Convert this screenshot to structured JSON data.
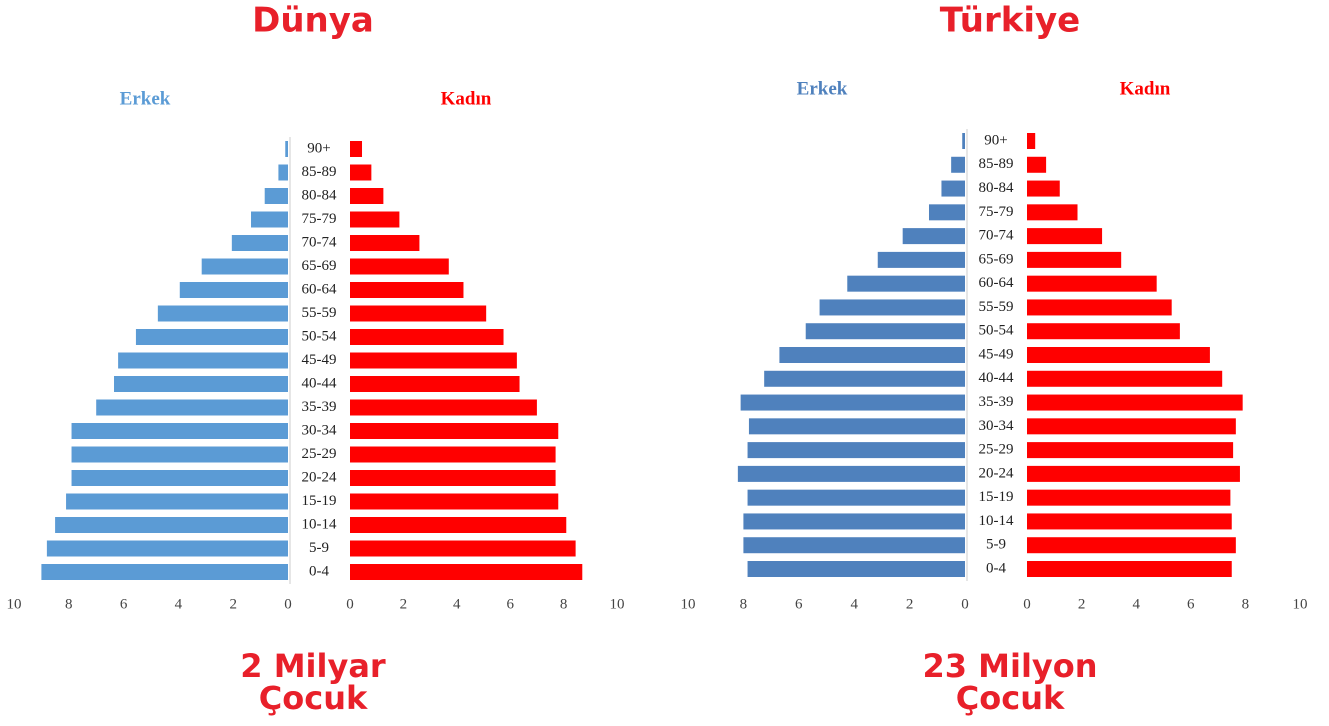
{
  "chart_data": [
    {
      "type": "bar",
      "title": "Dünya",
      "categories": [
        "0-4",
        "5-9",
        "10-14",
        "15-19",
        "20-24",
        "25-29",
        "30-34",
        "35-39",
        "40-44",
        "45-49",
        "50-54",
        "55-59",
        "60-64",
        "65-69",
        "70-74",
        "75-79",
        "80-84",
        "85-89",
        "90+"
      ],
      "series": [
        {
          "name": "Erkek",
          "color": "#5b9bd5",
          "values": [
            9.0,
            8.8,
            8.5,
            8.1,
            7.9,
            7.9,
            7.9,
            7.0,
            6.35,
            6.2,
            5.55,
            4.75,
            3.95,
            3.15,
            2.05,
            1.35,
            0.85,
            0.35,
            0.1
          ]
        },
        {
          "name": "Kadın",
          "color": "#ff0000",
          "values": [
            8.7,
            8.45,
            8.1,
            7.8,
            7.7,
            7.7,
            7.8,
            7.0,
            6.35,
            6.25,
            5.75,
            5.1,
            4.25,
            3.7,
            2.6,
            1.85,
            1.25,
            0.8,
            0.45
          ]
        }
      ],
      "xlim": [
        0,
        10
      ],
      "xticks": [
        0,
        2,
        4,
        6,
        8,
        10
      ],
      "annotation": [
        "2 Milyar",
        "Çocuk"
      ]
    },
    {
      "type": "bar",
      "title": "Türkiye",
      "categories": [
        "0-4",
        "5-9",
        "10-14",
        "15-19",
        "20-24",
        "25-29",
        "30-34",
        "35-39",
        "40-44",
        "45-49",
        "50-54",
        "55-59",
        "60-64",
        "65-69",
        "70-74",
        "75-79",
        "80-84",
        "85-89",
        "90+"
      ],
      "series": [
        {
          "name": "Erkek",
          "color": "#4f81bd",
          "values": [
            7.85,
            8.0,
            8.0,
            7.85,
            8.2,
            7.85,
            7.8,
            8.1,
            7.25,
            6.7,
            5.75,
            5.25,
            4.25,
            3.15,
            2.25,
            1.3,
            0.85,
            0.5,
            0.1
          ]
        },
        {
          "name": "Kadın",
          "color": "#ff0000",
          "values": [
            7.5,
            7.65,
            7.5,
            7.45,
            7.8,
            7.55,
            7.65,
            7.9,
            7.15,
            6.7,
            5.6,
            5.3,
            4.75,
            3.45,
            2.75,
            1.85,
            1.2,
            0.7,
            0.3
          ]
        }
      ],
      "xlim": [
        0,
        10
      ],
      "xticks": [
        0,
        2,
        4,
        6,
        8,
        10
      ],
      "annotation": [
        "23 Milyon",
        "Çocuk"
      ]
    }
  ]
}
